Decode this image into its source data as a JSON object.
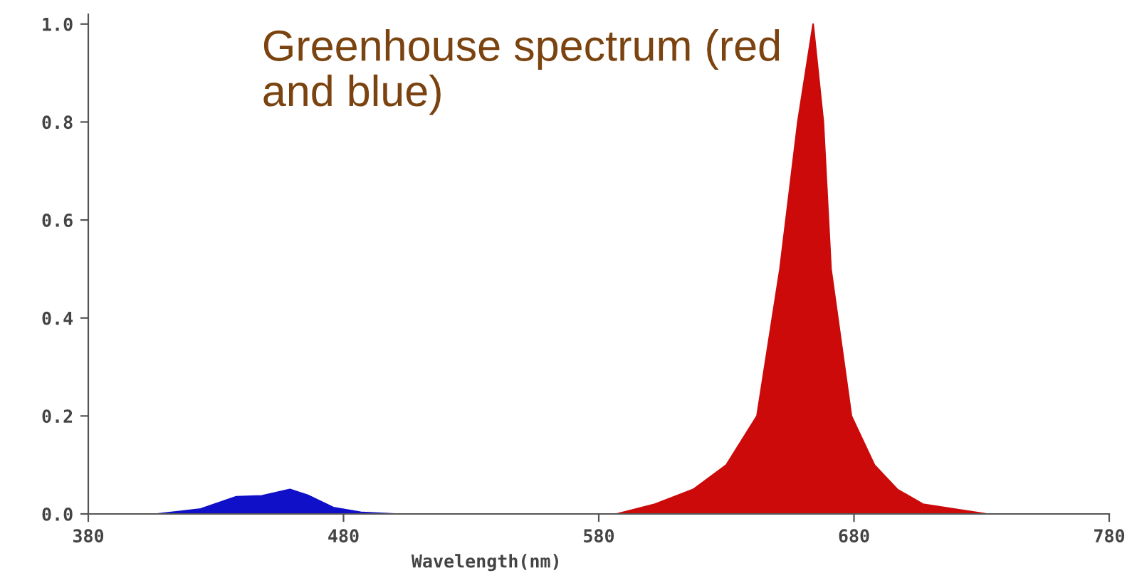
{
  "chart_data": {
    "type": "area",
    "title": "Greenhouse spectrum (red and blue)",
    "xlabel": "Wavelength(nm)",
    "series": [
      {
        "color": "#1010c8",
        "x": [
          380,
          407,
          424,
          438,
          448,
          459,
          466,
          476,
          487,
          500,
          780
        ],
        "values": [
          0,
          0,
          0.01,
          0.035,
          0.037,
          0.05,
          0.038,
          0.013,
          0.003,
          0,
          0
        ]
      },
      {
        "color": "#cc0a0a",
        "x": [
          380,
          587,
          602,
          617,
          630,
          642,
          651,
          658,
          664,
          668,
          671,
          679,
          688,
          697,
          707,
          732,
          780
        ],
        "values": [
          0,
          0,
          0.02,
          0.05,
          0.1,
          0.2,
          0.5,
          0.8,
          1.0,
          0.8,
          0.5,
          0.2,
          0.1,
          0.05,
          0.02,
          0,
          0
        ]
      }
    ],
    "xlim": [
      380,
      780
    ],
    "xticks": [
      380,
      480,
      580,
      680,
      780
    ],
    "ylim": [
      0,
      1.02
    ],
    "yticks": [
      {
        "value": 0,
        "label": "0.0"
      },
      {
        "value": 0.2,
        "label": "0.2"
      },
      {
        "value": 0.4,
        "label": "0.4"
      },
      {
        "value": 0.6,
        "label": "0.6"
      },
      {
        "value": 0.8,
        "label": "0.8"
      },
      {
        "value": 1.0,
        "label": "1.0"
      }
    ],
    "grid": false,
    "legend": false
  }
}
